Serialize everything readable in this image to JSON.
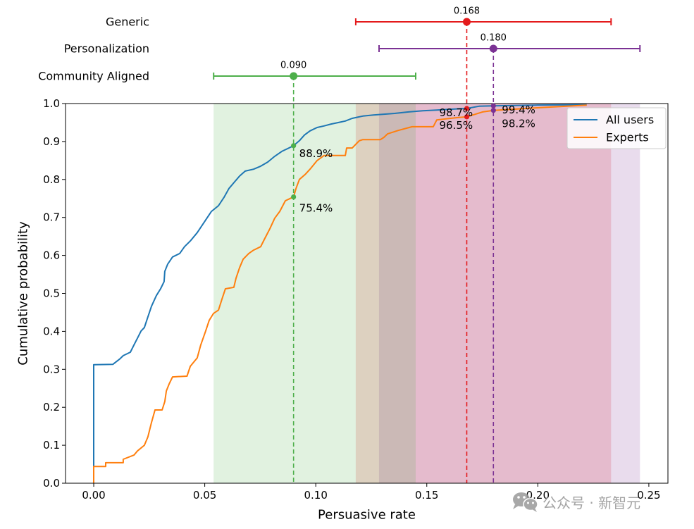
{
  "chart_data": [
    {
      "type": "scatter",
      "title": "",
      "categories": [
        "Generic",
        "Personalization",
        "Community Aligned"
      ],
      "points": [
        {
          "label": "Generic",
          "value": 0.168,
          "value_label": "0.168",
          "low": 0.118,
          "high": 0.233,
          "color": "#e41a1c"
        },
        {
          "label": "Personalization",
          "value": 0.18,
          "value_label": "0.180",
          "low": 0.1285,
          "high": 0.246,
          "color": "#7b3294"
        },
        {
          "label": "Community Aligned",
          "value": 0.09,
          "value_label": "0.090",
          "low": 0.054,
          "high": 0.145,
          "color": "#4daf4a"
        }
      ],
      "xlim": [
        -0.0127,
        0.2586
      ]
    },
    {
      "type": "line",
      "title": "",
      "xlabel": "Persuasive rate",
      "ylabel": "Cumulative probability",
      "xlim": [
        -0.0127,
        0.2586
      ],
      "ylim": [
        0,
        1
      ],
      "grid": false,
      "xticks": [
        0.0,
        0.05,
        0.1,
        0.15,
        0.2,
        0.25
      ],
      "xtick_labels": [
        "0.00",
        "0.05",
        "0.10",
        "0.15",
        "0.20",
        "0.25"
      ],
      "yticks": [
        0.0,
        0.1,
        0.2,
        0.3,
        0.4,
        0.5,
        0.6,
        0.7,
        0.8,
        0.9,
        1.0
      ],
      "ytick_labels": [
        "0.0",
        "0.1",
        "0.2",
        "0.3",
        "0.4",
        "0.5",
        "0.6",
        "0.7",
        "0.8",
        "0.9",
        "1.0"
      ],
      "legend": {
        "position": "top-right"
      },
      "series": [
        {
          "name": "All users",
          "color": "#1f77b4",
          "x": [
            0.0,
            0.0,
            0.0086,
            0.0117,
            0.0133,
            0.0165,
            0.0181,
            0.0197,
            0.0213,
            0.0228,
            0.0244,
            0.026,
            0.0282,
            0.0301,
            0.0317,
            0.032,
            0.0333,
            0.0355,
            0.0387,
            0.0409,
            0.0435,
            0.0466,
            0.0498,
            0.053,
            0.0562,
            0.0587,
            0.0609,
            0.0635,
            0.0657,
            0.0682,
            0.072,
            0.0752,
            0.0784,
            0.0815,
            0.0847,
            0.0879,
            0.09,
            0.0926,
            0.0949,
            0.0974,
            0.1006,
            0.1037,
            0.1069,
            0.1101,
            0.1133,
            0.1164,
            0.1212,
            0.126,
            0.1355,
            0.1418,
            0.1482,
            0.1545,
            0.164,
            0.168,
            0.1735,
            0.18,
            0.199,
            0.222
          ],
          "y": [
            0.0,
            0.312,
            0.313,
            0.327,
            0.336,
            0.345,
            0.364,
            0.382,
            0.401,
            0.41,
            0.438,
            0.466,
            0.494,
            0.512,
            0.531,
            0.558,
            0.577,
            0.596,
            0.605,
            0.623,
            0.638,
            0.66,
            0.688,
            0.716,
            0.731,
            0.753,
            0.776,
            0.794,
            0.809,
            0.822,
            0.827,
            0.835,
            0.846,
            0.861,
            0.874,
            0.883,
            0.889,
            0.902,
            0.917,
            0.928,
            0.937,
            0.941,
            0.946,
            0.95,
            0.954,
            0.961,
            0.967,
            0.97,
            0.974,
            0.978,
            0.981,
            0.983,
            0.986,
            0.987,
            0.993,
            0.994,
            0.996,
            0.997
          ]
        },
        {
          "name": "Experts",
          "color": "#ff7f0e",
          "x": [
            0.0,
            0.0,
            0.0054,
            0.0054,
            0.0133,
            0.0133,
            0.0181,
            0.0197,
            0.0228,
            0.0244,
            0.026,
            0.0276,
            0.0308,
            0.032,
            0.0327,
            0.034,
            0.0355,
            0.042,
            0.0435,
            0.0466,
            0.0482,
            0.0504,
            0.052,
            0.0539,
            0.0562,
            0.0577,
            0.0593,
            0.0631,
            0.0641,
            0.0657,
            0.0673,
            0.0698,
            0.072,
            0.0752,
            0.0768,
            0.0793,
            0.0815,
            0.0838,
            0.0863,
            0.0892,
            0.09,
            0.0911,
            0.0926,
            0.0952,
            0.0974,
            0.1006,
            0.1037,
            0.1133,
            0.1139,
            0.1164,
            0.1196,
            0.1212,
            0.1291,
            0.1307,
            0.1323,
            0.137,
            0.1434,
            0.1529,
            0.1545,
            0.164,
            0.168,
            0.1751,
            0.18,
            0.2005,
            0.222
          ],
          "y": [
            0.0,
            0.044,
            0.044,
            0.054,
            0.054,
            0.063,
            0.074,
            0.085,
            0.1,
            0.122,
            0.16,
            0.193,
            0.193,
            0.215,
            0.243,
            0.262,
            0.28,
            0.282,
            0.308,
            0.33,
            0.364,
            0.401,
            0.429,
            0.447,
            0.456,
            0.484,
            0.512,
            0.516,
            0.54,
            0.568,
            0.59,
            0.605,
            0.614,
            0.623,
            0.642,
            0.67,
            0.698,
            0.716,
            0.744,
            0.752,
            0.754,
            0.776,
            0.8,
            0.813,
            0.827,
            0.85,
            0.863,
            0.863,
            0.883,
            0.883,
            0.902,
            0.905,
            0.905,
            0.911,
            0.92,
            0.929,
            0.939,
            0.939,
            0.957,
            0.963,
            0.965,
            0.978,
            0.982,
            0.989,
            0.996
          ]
        }
      ],
      "annotations": [
        {
          "x": 0.09,
          "y": 0.889,
          "series": "All users",
          "label": "88.9%",
          "color": "#4daf4a"
        },
        {
          "x": 0.09,
          "y": 0.754,
          "series": "Experts",
          "label": "75.4%",
          "color": "#4daf4a"
        },
        {
          "x": 0.168,
          "y": 0.987,
          "series": "All users",
          "label": "98.7%",
          "color": "#e41a1c"
        },
        {
          "x": 0.168,
          "y": 0.965,
          "series": "Experts",
          "label": "96.5%",
          "color": "#e41a1c"
        },
        {
          "x": 0.18,
          "y": 0.994,
          "series": "All users",
          "label": "99.4%",
          "color": "#7b3294"
        },
        {
          "x": 0.18,
          "y": 0.982,
          "series": "Experts",
          "label": "98.2%",
          "color": "#7b3294"
        }
      ]
    }
  ],
  "watermark": {
    "text": "公众号 · 新智元",
    "icon": "wechat-icon"
  }
}
